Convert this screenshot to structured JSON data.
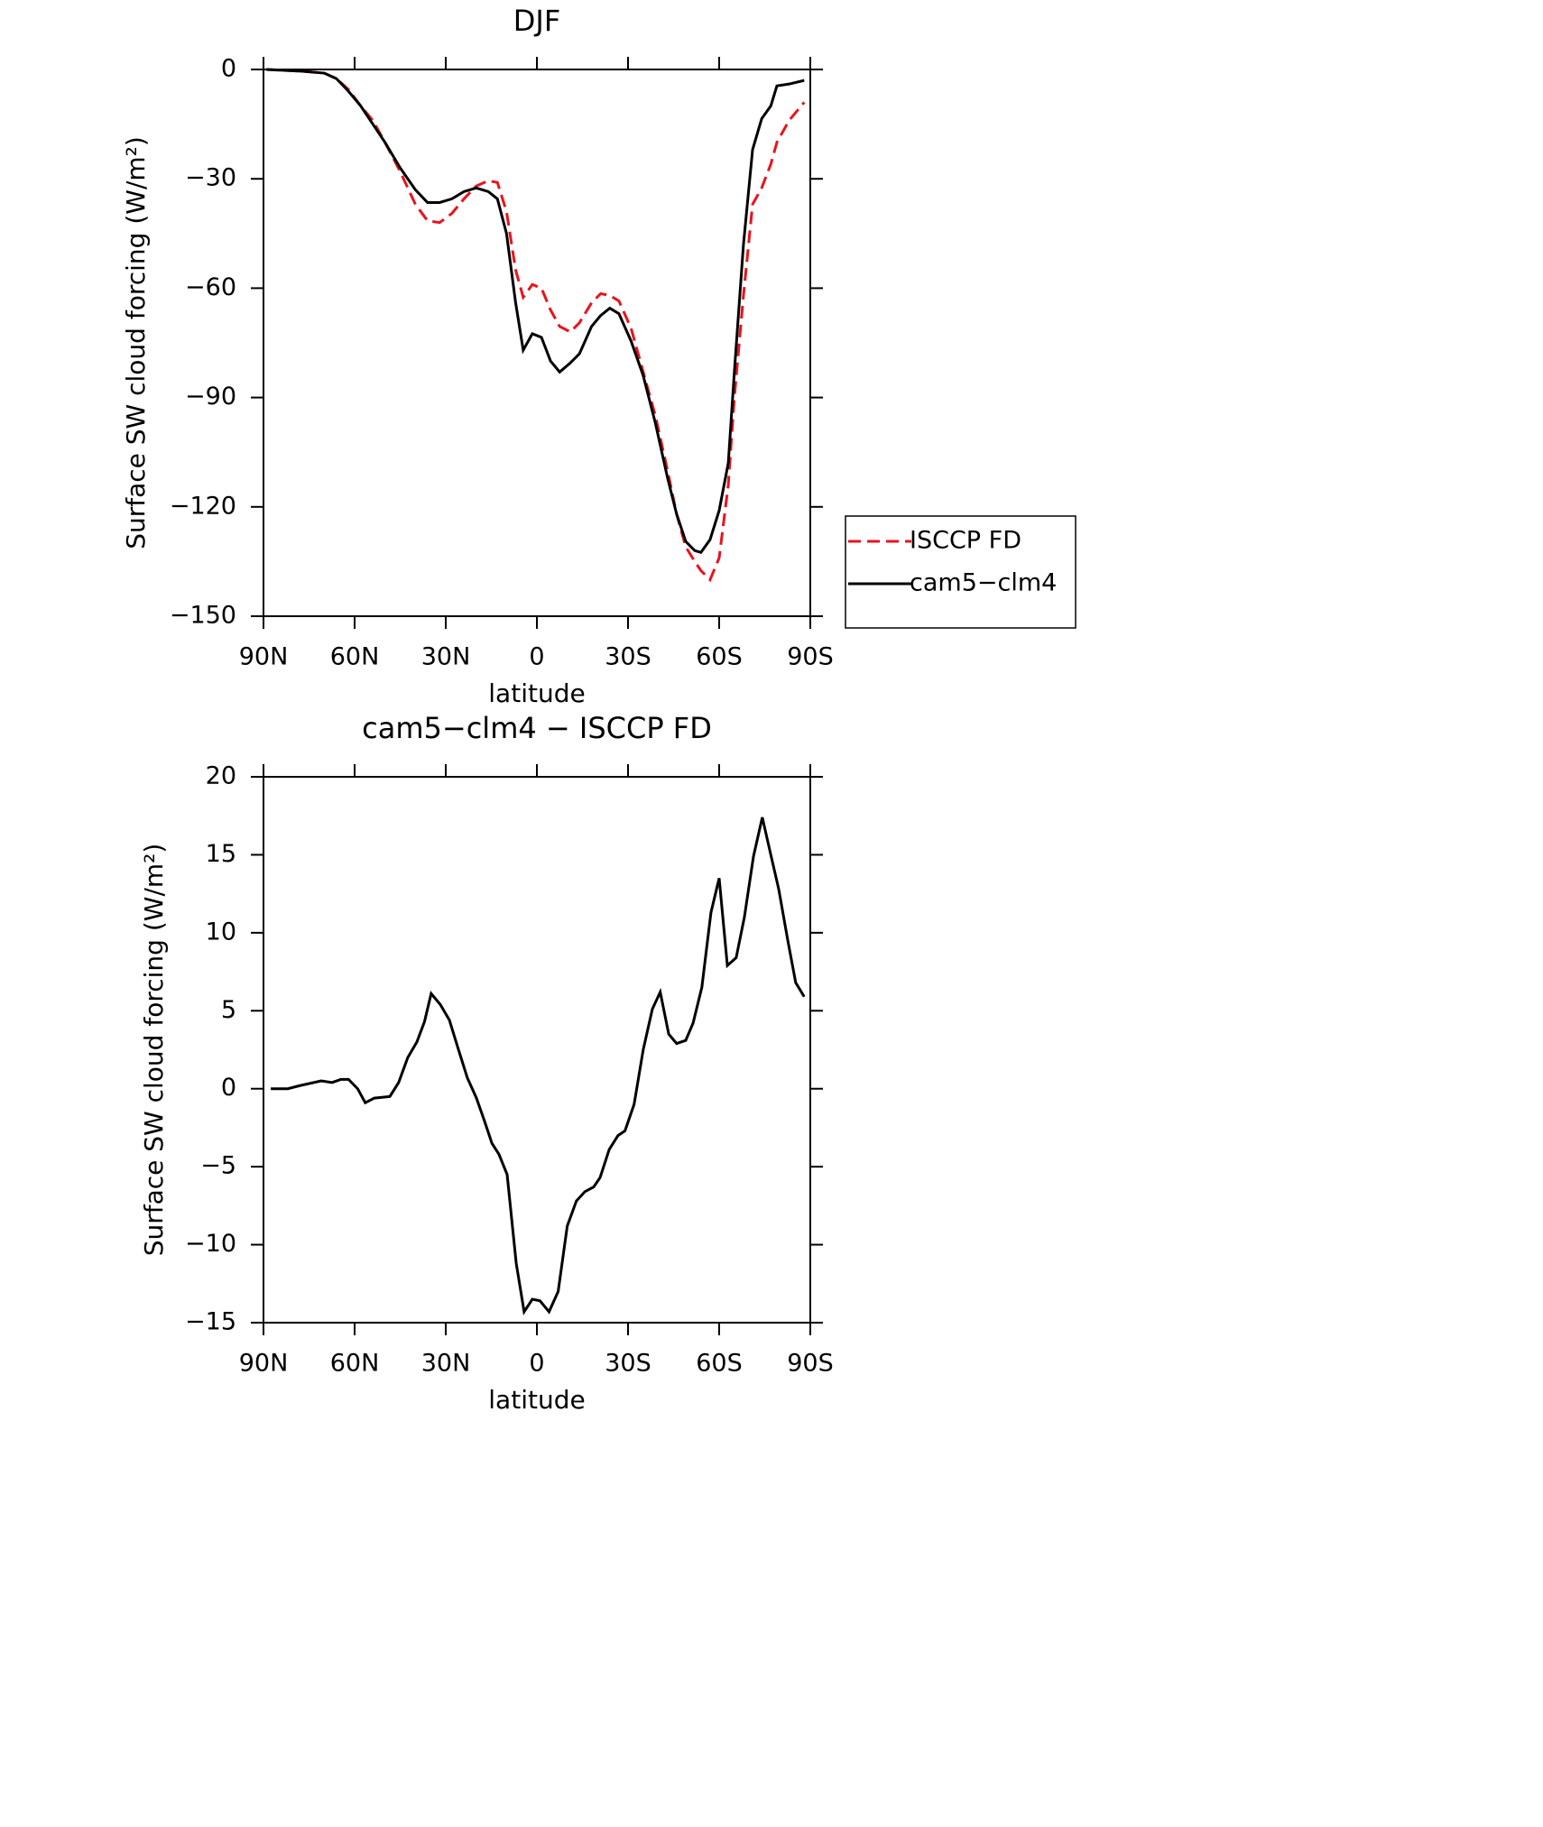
{
  "chart_data": [
    {
      "type": "line",
      "title": "DJF",
      "xlabel": "latitude",
      "ylabel": "Surface SW cloud forcing (W/m²)",
      "x": [
        89,
        77,
        70,
        66,
        62,
        58,
        54,
        50,
        45,
        40,
        36,
        32,
        28,
        24,
        20,
        16,
        13,
        10,
        7,
        4.5,
        1.5,
        -1.5,
        -4.5,
        -7.5,
        -11,
        -14,
        -18,
        -21,
        -24,
        -27,
        -31,
        -35,
        -39,
        -43,
        -46,
        -49,
        -52,
        -54,
        -57,
        -60,
        -63,
        -65,
        -68,
        -71,
        -74,
        -77,
        -79,
        -83,
        -88
      ],
      "series": [
        {
          "name": "ISCCP FD",
          "color": "#e8141c",
          "linestyle": "dashed",
          "values": [
            0,
            -0.5,
            -1,
            -2.5,
            -5.5,
            -10,
            -14,
            -20,
            -28,
            -37,
            -41.5,
            -42,
            -39.5,
            -35.5,
            -32,
            -30.5,
            -31,
            -39,
            -55,
            -62.5,
            -59,
            -60,
            -66,
            -70.5,
            -72,
            -69.5,
            -64,
            -61.5,
            -62,
            -63.5,
            -71,
            -83,
            -95,
            -110,
            -122,
            -131,
            -135,
            -137.5,
            -140,
            -134,
            -114,
            -90,
            -62,
            -37,
            -32.5,
            -26,
            -20,
            -14,
            -9
          ]
        },
        {
          "name": "cam5−clm4",
          "color": "#000000",
          "linestyle": "solid",
          "values": [
            0,
            -0.5,
            -1,
            -2.5,
            -6,
            -10,
            -15,
            -20,
            -27,
            -33,
            -36.5,
            -36.5,
            -35.5,
            -33.5,
            -32.5,
            -33.5,
            -35.5,
            -45,
            -64,
            -77,
            -72.5,
            -73.5,
            -80,
            -83,
            -80.5,
            -78,
            -70.5,
            -67.5,
            -65.5,
            -67,
            -74.5,
            -84,
            -97,
            -112,
            -122,
            -129.5,
            -132,
            -132.5,
            -129,
            -121,
            -108,
            -83,
            -48,
            -22,
            -13.5,
            -10,
            -4.5,
            -4,
            -3
          ]
        }
      ],
      "xlim": [
        90,
        -90
      ],
      "xticks": [
        {
          "value": 90,
          "label": "90N"
        },
        {
          "value": 60,
          "label": "60N"
        },
        {
          "value": 30,
          "label": "30N"
        },
        0,
        {
          "value": -30,
          "label": "30S"
        },
        {
          "value": -60,
          "label": "60S"
        },
        {
          "value": -90,
          "label": "90S"
        }
      ],
      "ylim": [
        -150,
        0
      ],
      "yticks": [
        0,
        {
          "value": -30,
          "label": "−30"
        },
        {
          "value": -60,
          "label": "−60"
        },
        {
          "value": -90,
          "label": "−90"
        },
        {
          "value": -120,
          "label": "−120"
        },
        {
          "value": -150,
          "label": "−150"
        }
      ],
      "legend": "right"
    },
    {
      "type": "line",
      "title": "cam5−clm4 − ISCCP FD",
      "xlabel": "latitude",
      "ylabel": "Surface SW cloud forcing (W/m²)",
      "x": [
        87.6,
        82,
        78,
        71,
        67.4,
        64.5,
        62,
        59,
        56.5,
        53.5,
        48.4,
        45.5,
        42.5,
        39.5,
        37,
        34.8,
        31.8,
        28.8,
        25.8,
        22.9,
        19.9,
        17.2,
        14.8,
        12.5,
        9.8,
        6.8,
        4.2,
        1.5,
        -1,
        -4,
        -7,
        -10,
        -13,
        -15.8,
        -18.7,
        -20.8,
        -23.8,
        -26.7,
        -29,
        -32,
        -35,
        -38,
        -40.6,
        -43.4,
        -46,
        -49,
        -51.4,
        -54.3,
        -57.3,
        -60,
        -62.7,
        -65.6,
        -68.3,
        -71.3,
        -74.2,
        -77,
        -79.6,
        -82.6,
        -85.2,
        -88
      ],
      "values": [
        0,
        0,
        0.2,
        0.5,
        0.4,
        0.6,
        0.6,
        0,
        -0.9,
        -0.6,
        -0.5,
        0.4,
        2,
        3,
        4.3,
        6.1,
        5.4,
        4.4,
        2.5,
        0.7,
        -0.6,
        -2.1,
        -3.5,
        -4.2,
        -5.5,
        -11.2,
        -14.3,
        -13.5,
        -13.6,
        -14.3,
        -13,
        -8.8,
        -7.2,
        -6.6,
        -6.3,
        -5.7,
        -3.9,
        -3,
        -2.7,
        -1,
        2.5,
        5.1,
        6.2,
        3.5,
        2.9,
        3.1,
        4.2,
        6.5,
        11.3,
        13.5,
        7.9,
        8.4,
        11,
        14.9,
        17.4,
        15,
        12.8,
        9.5,
        6.8,
        5.9
      ],
      "color": "#000000",
      "xlim": [
        90,
        -90
      ],
      "xticks": [
        {
          "value": 90,
          "label": "90N"
        },
        {
          "value": 60,
          "label": "60N"
        },
        {
          "value": 30,
          "label": "30N"
        },
        0,
        {
          "value": -30,
          "label": "30S"
        },
        {
          "value": -60,
          "label": "60S"
        },
        {
          "value": -90,
          "label": "90S"
        }
      ],
      "ylim": [
        -15,
        20
      ],
      "yticks": [
        20,
        15,
        10,
        5,
        0,
        {
          "value": -5,
          "label": "−5"
        },
        {
          "value": -10,
          "label": "−10"
        },
        {
          "value": -15,
          "label": "−15"
        }
      ]
    }
  ]
}
